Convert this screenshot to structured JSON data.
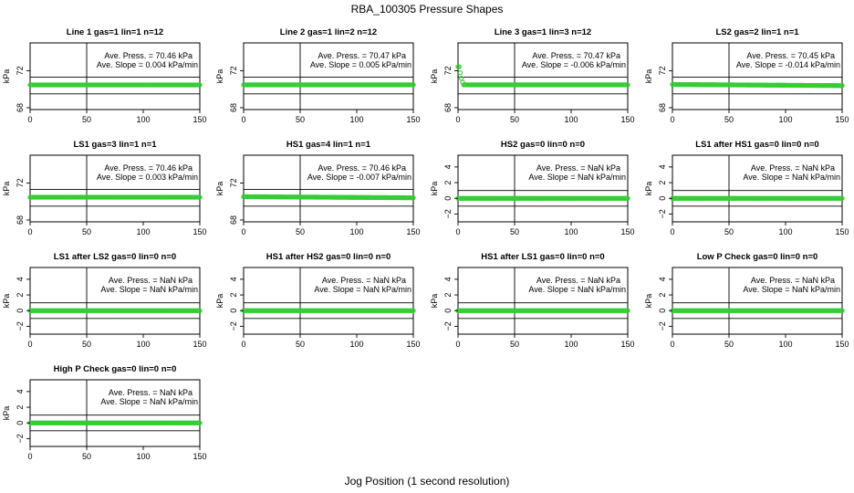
{
  "title": "RBA_100305  Pressure Shapes",
  "xlabel": "Jog Position (1 second resolution)",
  "colors": {
    "points": "#33cc33",
    "lines": "#000000",
    "background": "#ffffff"
  },
  "chart_data": [
    {
      "type": "scatter",
      "title": "Line 1 gas=1 lin=1 n=12",
      "ylabel": "kPa",
      "xlim": [
        0,
        150
      ],
      "ylim": [
        67.8,
        75
      ],
      "xticks": [
        0,
        50,
        100,
        150
      ],
      "yticks": [
        "68",
        "72"
      ],
      "yticks_values": [
        68,
        72
      ],
      "hlines": [
        69.5,
        71.3
      ],
      "vline": 50,
      "ann1": "Ave. Press. =  70.46  kPa",
      "ann2": "Ave. Slope =  0.004  kPa/min",
      "level": 70.46,
      "shape": "flat"
    },
    {
      "type": "scatter",
      "title": "Line 2 gas=1 lin=2 n=12",
      "ylabel": "kPa",
      "xlim": [
        0,
        150
      ],
      "ylim": [
        67.8,
        75
      ],
      "xticks": [
        0,
        50,
        100,
        150
      ],
      "yticks": [
        "68",
        "72"
      ],
      "yticks_values": [
        68,
        72
      ],
      "hlines": [
        69.5,
        71.3
      ],
      "vline": 50,
      "ann1": "Ave. Press. =  70.47  kPa",
      "ann2": "Ave. Slope =  0.005  kPa/min",
      "level": 70.47,
      "shape": "flat"
    },
    {
      "type": "scatter",
      "title": "Line 3 gas=1 lin=3 n=12",
      "ylabel": "kPa",
      "xlim": [
        0,
        150
      ],
      "ylim": [
        67.8,
        75
      ],
      "xticks": [
        0,
        50,
        100,
        150
      ],
      "yticks": [
        "68",
        "72"
      ],
      "yticks_values": [
        68,
        72
      ],
      "hlines": [
        69.5,
        71.3
      ],
      "vline": 50,
      "ann1": "Ave. Press. =  70.47  kPa",
      "ann2": "Ave. Slope =  -0.006  kPa/min",
      "level": 70.47,
      "shape": "spike"
    },
    {
      "type": "scatter",
      "title": "LS2 gas=2 lin=1 n=1",
      "ylabel": "kPa",
      "xlim": [
        0,
        150
      ],
      "ylim": [
        67.8,
        75
      ],
      "xticks": [
        0,
        50,
        100,
        150
      ],
      "yticks": [
        "68",
        "72"
      ],
      "yticks_values": [
        68,
        72
      ],
      "hlines": [
        69.5,
        71.3
      ],
      "vline": 50,
      "ann1": "Ave. Press. =  70.45  kPa",
      "ann2": "Ave. Slope =  -0.014  kPa/min",
      "level": 70.45,
      "shape": "slope"
    },
    {
      "type": "scatter",
      "title": "LS1 gas=3 lin=1 n=1",
      "ylabel": "kPa",
      "xlim": [
        0,
        150
      ],
      "ylim": [
        67.8,
        75
      ],
      "xticks": [
        0,
        50,
        100,
        150
      ],
      "yticks": [
        "68",
        "72"
      ],
      "yticks_values": [
        68,
        72
      ],
      "hlines": [
        69.5,
        71.3
      ],
      "vline": 50,
      "ann1": "Ave. Press. =  70.46  kPa",
      "ann2": "Ave. Slope =  0.003  kPa/min",
      "level": 70.46,
      "shape": "flat"
    },
    {
      "type": "scatter",
      "title": "HS1 gas=4 lin=1 n=1",
      "ylabel": "kPa",
      "xlim": [
        0,
        150
      ],
      "ylim": [
        67.8,
        75
      ],
      "xticks": [
        0,
        50,
        100,
        150
      ],
      "yticks": [
        "68",
        "72"
      ],
      "yticks_values": [
        68,
        72
      ],
      "hlines": [
        69.5,
        71.3
      ],
      "vline": 50,
      "ann1": "Ave. Press. =  70.46  kPa",
      "ann2": "Ave. Slope =  -0.007  kPa/min",
      "level": 70.46,
      "shape": "slope"
    },
    {
      "type": "scatter",
      "title": "HS2 gas=0 lin=0 n=0",
      "ylabel": "kPa",
      "xlim": [
        0,
        150
      ],
      "ylim": [
        -3,
        5.5
      ],
      "xticks": [
        0,
        50,
        100,
        150
      ],
      "yticks": [
        "−2",
        "0",
        "2",
        "4"
      ],
      "yticks_values": [
        -2,
        0,
        2,
        4
      ],
      "hlines": [
        -1,
        1
      ],
      "vline": 50,
      "ann1": "Ave. Press. =  NaN  kPa",
      "ann2": "Ave. Slope =  NaN  kPa/min",
      "level": 0,
      "shape": "flat"
    },
    {
      "type": "scatter",
      "title": "LS1 after HS1 gas=0 lin=0 n=0",
      "ylabel": "kPa",
      "xlim": [
        0,
        150
      ],
      "ylim": [
        -3,
        5.5
      ],
      "xticks": [
        0,
        50,
        100,
        150
      ],
      "yticks": [
        "−2",
        "0",
        "2",
        "4"
      ],
      "yticks_values": [
        -2,
        0,
        2,
        4
      ],
      "hlines": [
        -1,
        1
      ],
      "vline": 50,
      "ann1": "Ave. Press. =  NaN  kPa",
      "ann2": "Ave. Slope =  NaN  kPa/min",
      "level": 0,
      "shape": "flat"
    },
    {
      "type": "scatter",
      "title": "LS1 after LS2 gas=0 lin=0 n=0",
      "ylabel": "kPa",
      "xlim": [
        0,
        150
      ],
      "ylim": [
        -3,
        5.5
      ],
      "xticks": [
        0,
        50,
        100,
        150
      ],
      "yticks": [
        "−2",
        "0",
        "2",
        "4"
      ],
      "yticks_values": [
        -2,
        0,
        2,
        4
      ],
      "hlines": [
        -1,
        1
      ],
      "vline": 50,
      "ann1": "Ave. Press. =  NaN  kPa",
      "ann2": "Ave. Slope =  NaN  kPa/min",
      "level": 0,
      "shape": "flat"
    },
    {
      "type": "scatter",
      "title": "HS1 after HS2 gas=0 lin=0 n=0",
      "ylabel": "kPa",
      "xlim": [
        0,
        150
      ],
      "ylim": [
        -3,
        5.5
      ],
      "xticks": [
        0,
        50,
        100,
        150
      ],
      "yticks": [
        "−2",
        "0",
        "2",
        "4"
      ],
      "yticks_values": [
        -2,
        0,
        2,
        4
      ],
      "hlines": [
        -1,
        1
      ],
      "vline": 50,
      "ann1": "Ave. Press. =  NaN  kPa",
      "ann2": "Ave. Slope =  NaN  kPa/min",
      "level": 0,
      "shape": "flat"
    },
    {
      "type": "scatter",
      "title": "HS1 after LS1 gas=0 lin=0 n=0",
      "ylabel": "kPa",
      "xlim": [
        0,
        150
      ],
      "ylim": [
        -3,
        5.5
      ],
      "xticks": [
        0,
        50,
        100,
        150
      ],
      "yticks": [
        "−2",
        "0",
        "2",
        "4"
      ],
      "yticks_values": [
        -2,
        0,
        2,
        4
      ],
      "hlines": [
        -1,
        1
      ],
      "vline": 50,
      "ann1": "Ave. Press. =  NaN  kPa",
      "ann2": "Ave. Slope =  NaN  kPa/min",
      "level": 0,
      "shape": "flat"
    },
    {
      "type": "scatter",
      "title": "Low P Check gas=0 lin=0 n=0",
      "ylabel": "kPa",
      "xlim": [
        0,
        150
      ],
      "ylim": [
        -3,
        5.5
      ],
      "xticks": [
        0,
        50,
        100,
        150
      ],
      "yticks": [
        "−2",
        "0",
        "2",
        "4"
      ],
      "yticks_values": [
        -2,
        0,
        2,
        4
      ],
      "hlines": [
        -1,
        1
      ],
      "vline": 50,
      "ann1": "Ave. Press. =  NaN  kPa",
      "ann2": "Ave. Slope =  NaN  kPa/min",
      "level": 0,
      "shape": "flat"
    },
    {
      "type": "scatter",
      "title": "High P Check gas=0 lin=0 n=0",
      "ylabel": "kPa",
      "xlim": [
        0,
        150
      ],
      "ylim": [
        -3,
        5.5
      ],
      "xticks": [
        0,
        50,
        100,
        150
      ],
      "yticks": [
        "−2",
        "0",
        "2",
        "4"
      ],
      "yticks_values": [
        -2,
        0,
        2,
        4
      ],
      "hlines": [
        -1,
        1
      ],
      "vline": 50,
      "ann1": "Ave. Press. =  NaN  kPa",
      "ann2": "Ave. Slope =  NaN  kPa/min",
      "level": 0,
      "shape": "flat"
    }
  ]
}
